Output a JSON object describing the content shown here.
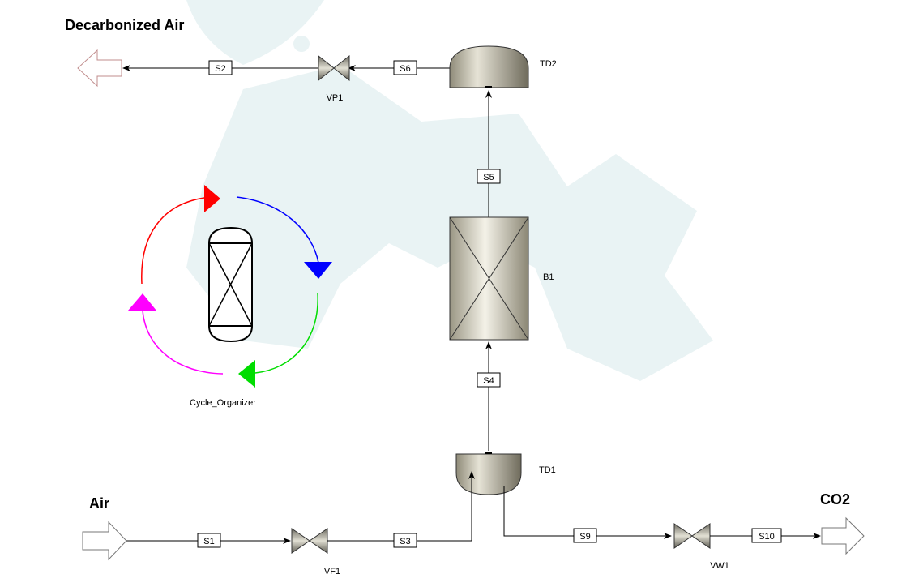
{
  "headings": {
    "decarbonized_air": "Decarbonized Air",
    "air": "Air",
    "co2": "CO2"
  },
  "streams": {
    "s1": "S1",
    "s2": "S2",
    "s3": "S3",
    "s4": "S4",
    "s5": "S5",
    "s6": "S6",
    "s9": "S9",
    "s10": "S10"
  },
  "blocks": {
    "td1": "TD1",
    "td2": "TD2",
    "b1": "B1",
    "vp1": "VP1",
    "vf1": "VF1",
    "vw1": "VW1"
  },
  "cycle": {
    "label": "Cycle_Organizer"
  },
  "colors": {
    "watermark": "#e9f3f4",
    "equipment_fill": "#c9c6b4",
    "cycle_red": "#ff0000",
    "cycle_blue": "#0000ff",
    "cycle_green": "#00dd00",
    "cycle_magenta": "#ff00ff"
  }
}
